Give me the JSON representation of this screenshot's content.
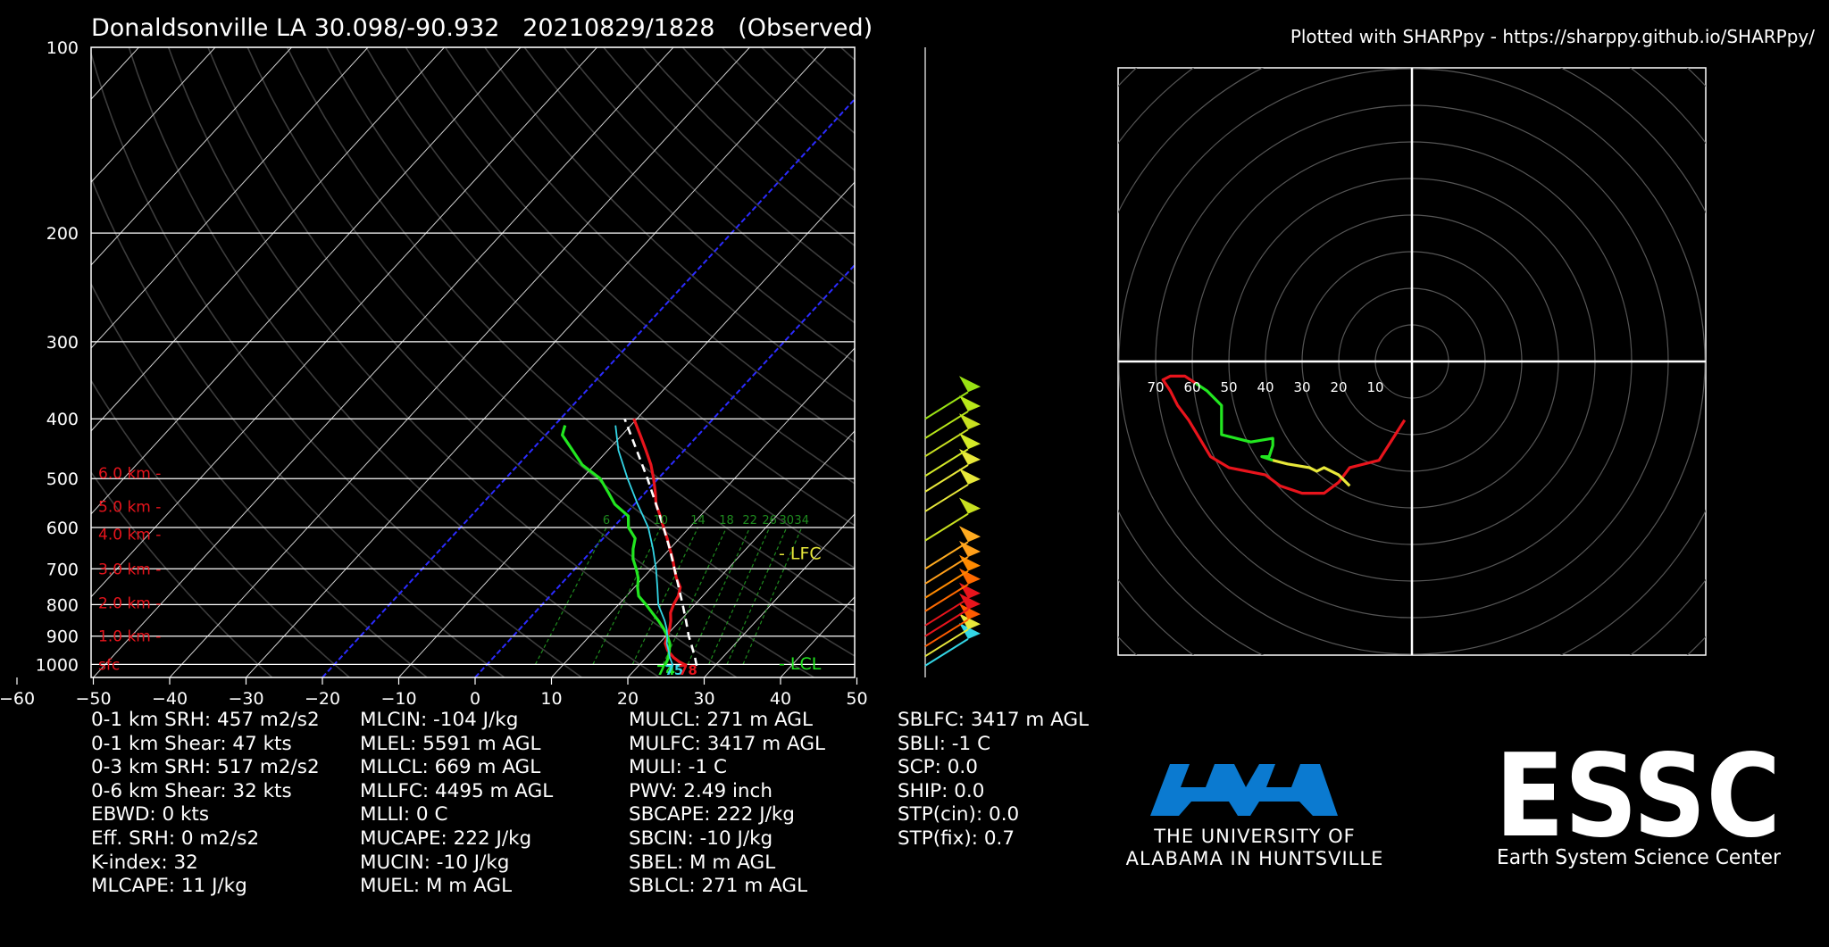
{
  "header": {
    "title": "Donaldsonville LA 30.098/-90.932   20210829/1828   (Observed)",
    "credit": "Plotted with SHARPpy - https://sharppy.github.io/SHARPpy/"
  },
  "colors": {
    "background": "#000000",
    "temperature": "#e8141c",
    "dewpoint": "#22e620",
    "wetbulb": "#33d6e6",
    "parcel": "#ffffff",
    "dry_adiabat": "#3c3c3c",
    "isotherm": "#d0d0d0",
    "zero_isotherm": "#2b2bff",
    "mixing_ratio": "#1e8a1e",
    "height_label": "#e8141c",
    "lfc": "#e8e83a",
    "lcl": "#22e620",
    "uah_blue": "#0b7ad0"
  },
  "chart_data": [
    {
      "type": "line",
      "subtype": "skew-t log-p",
      "xlabel": "",
      "ylabel": "",
      "ylog": true,
      "xlim": [
        -50,
        50
      ],
      "ylim": [
        1050,
        100
      ],
      "x_ticks": [
        "−60",
        "−50",
        "−40",
        "−30",
        "−20",
        "−10",
        "0",
        "10",
        "20",
        "30",
        "40",
        "50"
      ],
      "y_ticks": [
        "100",
        "200",
        "300",
        "400",
        "500",
        "600",
        "700",
        "800",
        "900",
        "1000"
      ],
      "grid": true,
      "height_labels": [
        {
          "p": 1000,
          "text": "sfc"
        },
        {
          "p": 900,
          "text": "1.0 km -"
        },
        {
          "p": 795,
          "text": "2.0 km -"
        },
        {
          "p": 700,
          "text": "3.0 km -"
        },
        {
          "p": 615,
          "text": "4.0 km -"
        },
        {
          "p": 555,
          "text": "5.0 km -"
        },
        {
          "p": 490,
          "text": "6.0 km -"
        }
      ],
      "level_labels": [
        {
          "p": 660,
          "text": "- LFC"
        },
        {
          "p": 995,
          "text": "- LCL"
        }
      ],
      "mixing_ratio_labels": [
        "6",
        "10",
        "14",
        "18",
        "22",
        "26",
        "30",
        "34"
      ],
      "surface_labels": {
        "dewpoint": "74",
        "wetbulb": "75",
        "temperature": "78"
      },
      "series": [
        {
          "role": "temperature",
          "points": [
            [
              1005,
              26.3
            ],
            [
              990,
              24.8
            ],
            [
              975,
              23.6
            ],
            [
              950,
              22.0
            ],
            [
              925,
              20.8
            ],
            [
              900,
              20.2
            ],
            [
              875,
              19.6
            ],
            [
              850,
              18.8
            ],
            [
              825,
              17.8
            ],
            [
              800,
              17.2
            ],
            [
              775,
              16.8
            ],
            [
              750,
              16.0
            ],
            [
              725,
              14.4
            ],
            [
              700,
              13.0
            ],
            [
              675,
              11.6
            ],
            [
              650,
              10.0
            ],
            [
              625,
              8.4
            ],
            [
              600,
              6.6
            ],
            [
              575,
              4.8
            ],
            [
              550,
              2.8
            ],
            [
              525,
              1.2
            ],
            [
              500,
              -0.6
            ],
            [
              475,
              -2.6
            ],
            [
              450,
              -5.0
            ],
            [
              425,
              -7.6
            ],
            [
              400,
              -10.4
            ]
          ]
        },
        {
          "role": "dewpoint",
          "points": [
            [
              1005,
              23.4
            ],
            [
              990,
              23.2
            ],
            [
              975,
              22.9
            ],
            [
              950,
              22.2
            ],
            [
              925,
              21.4
            ],
            [
              900,
              20.2
            ],
            [
              875,
              18.8
            ],
            [
              850,
              17.2
            ],
            [
              825,
              15.4
            ],
            [
              800,
              13.6
            ],
            [
              775,
              11.6
            ],
            [
              750,
              10.4
            ],
            [
              725,
              9.4
            ],
            [
              700,
              8.0
            ],
            [
              675,
              6.4
            ],
            [
              650,
              5.2
            ],
            [
              625,
              4.2
            ],
            [
              600,
              2.0
            ],
            [
              575,
              0.6
            ],
            [
              550,
              -2.6
            ],
            [
              525,
              -5.0
            ],
            [
              500,
              -7.6
            ],
            [
              475,
              -11.6
            ],
            [
              450,
              -14.6
            ],
            [
              425,
              -17.8
            ],
            [
              410,
              -18.6
            ]
          ]
        },
        {
          "role": "wetbulb",
          "points": [
            [
              1005,
              24.5
            ],
            [
              975,
              23.1
            ],
            [
              950,
              22.1
            ],
            [
              925,
              21.0
            ],
            [
              900,
              20.2
            ],
            [
              875,
              19.2
            ],
            [
              850,
              18.0
            ],
            [
              800,
              15.2
            ],
            [
              750,
              13.0
            ],
            [
              700,
              10.6
            ],
            [
              650,
              7.8
            ],
            [
              600,
              4.6
            ],
            [
              550,
              0.4
            ],
            [
              500,
              -4.0
            ],
            [
              450,
              -8.6
            ],
            [
              410,
              -12.0
            ]
          ]
        },
        {
          "role": "parcel",
          "points": [
            [
              1005,
              27.6
            ],
            [
              975,
              26.4
            ],
            [
              950,
              25.3
            ],
            [
              925,
              24.2
            ],
            [
              900,
              23.0
            ],
            [
              850,
              20.8
            ],
            [
              800,
              18.4
            ],
            [
              750,
              15.8
            ],
            [
              700,
              13.0
            ],
            [
              650,
              10.0
            ],
            [
              600,
              6.6
            ],
            [
              550,
              2.8
            ],
            [
              500,
              -1.4
            ],
            [
              450,
              -6.2
            ],
            [
              400,
              -11.6
            ]
          ]
        }
      ]
    },
    {
      "type": "line",
      "subtype": "hodograph",
      "xlabel": "",
      "ylabel": "",
      "ring_labels": [
        "70",
        "60",
        "50",
        "40",
        "30",
        "20",
        "10"
      ],
      "grid": true,
      "segments": [
        {
          "color": "#e8141c",
          "points": [
            [
              -2,
              16
            ],
            [
              -9,
              27
            ],
            [
              -17,
              29
            ],
            [
              -20,
              33
            ],
            [
              -24,
              36
            ],
            [
              -30,
              36
            ],
            [
              -36,
              34
            ],
            [
              -40,
              31
            ],
            [
              -45,
              30
            ],
            [
              -50,
              29
            ],
            [
              -55,
              26
            ],
            [
              -58,
              21
            ],
            [
              -61,
              16
            ],
            [
              -64,
              12
            ],
            [
              -66,
              8
            ],
            [
              -68,
              5
            ],
            [
              -66,
              4
            ],
            [
              -62,
              4
            ],
            [
              -59,
              6
            ]
          ]
        },
        {
          "color": "#22e620",
          "points": [
            [
              -59,
              6
            ],
            [
              -56,
              8
            ],
            [
              -52,
              12
            ],
            [
              -52,
              18
            ],
            [
              -52,
              20
            ],
            [
              -44,
              22
            ],
            [
              -38,
              21
            ],
            [
              -38,
              23
            ],
            [
              -39,
              26
            ],
            [
              -41,
              26
            ],
            [
              -38,
              27
            ]
          ]
        },
        {
          "color": "#e8e83a",
          "points": [
            [
              -38,
              27
            ],
            [
              -34,
              28
            ],
            [
              -28,
              29
            ],
            [
              -26,
              30
            ],
            [
              -24,
              29
            ],
            [
              -20,
              31
            ],
            [
              -17,
              34
            ]
          ]
        }
      ]
    }
  ],
  "wind_barbs": [
    {
      "p": 1005,
      "color": "#33d6e6"
    },
    {
      "p": 970,
      "color": "#e8e83a"
    },
    {
      "p": 935,
      "color": "#ff5a00"
    },
    {
      "p": 900,
      "color": "#e8141c"
    },
    {
      "p": 865,
      "color": "#e8141c"
    },
    {
      "p": 820,
      "color": "#ff6a00"
    },
    {
      "p": 780,
      "color": "#ff8a00"
    },
    {
      "p": 740,
      "color": "#ff9f1a"
    },
    {
      "p": 700,
      "color": "#ffab20"
    },
    {
      "p": 630,
      "color": "#c8e020"
    },
    {
      "p": 565,
      "color": "#e8e83a"
    },
    {
      "p": 525,
      "color": "#e8e83a"
    },
    {
      "p": 495,
      "color": "#d4ea28"
    },
    {
      "p": 460,
      "color": "#c8e020"
    },
    {
      "p": 430,
      "color": "#b8e81a"
    },
    {
      "p": 400,
      "color": "#9ae214"
    }
  ],
  "stats": {
    "col1": [
      "0-1 km SRH: 457 m2/s2",
      "0-1 km Shear: 47 kts",
      "0-3 km SRH: 517 m2/s2",
      "0-6 km Shear: 32 kts",
      "EBWD: 0 kts",
      "Eff. SRH: 0 m2/s2",
      "K-index: 32",
      "MLCAPE: 11 J/kg"
    ],
    "col2": [
      "MLCIN: -104 J/kg",
      "MLEL: 5591 m AGL",
      "MLLCL: 669 m AGL",
      "MLLFC: 4495 m AGL",
      "MLLI: 0 C",
      "MUCAPE: 222 J/kg",
      "MUCIN: -10 J/kg",
      "MUEL: M m AGL"
    ],
    "col3": [
      "MULCL: 271 m AGL",
      "MULFC: 3417 m AGL",
      "MULI: -1 C",
      "PWV: 2.49 inch",
      "SBCAPE: 222 J/kg",
      "SBCIN: -10 J/kg",
      "SBEL: M m AGL",
      "SBLCL: 271 m AGL"
    ],
    "col4": [
      "SBLFC: 3417 m AGL",
      "SBLI: -1 C",
      "SCP: 0.0",
      "SHIP: 0.0",
      "STP(cin): 0.0",
      "STP(fix): 0.7"
    ]
  },
  "logos": {
    "uah_line1": "THE UNIVERSITY OF",
    "uah_line2": "ALABAMA IN HUNTSVILLE",
    "essc_big": "ESSC",
    "essc_small": "Earth System Science Center"
  }
}
